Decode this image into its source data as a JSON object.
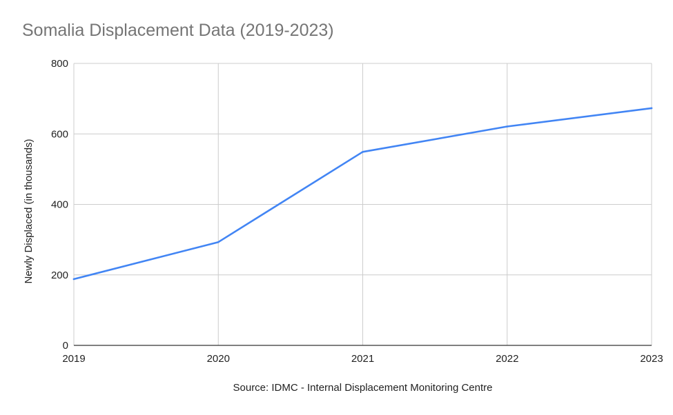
{
  "chart_data": {
    "type": "line",
    "title": "Somalia Displacement Data (2019-2023)",
    "xlabel": "Source: IDMC - Internal Displacement Monitoring Centre",
    "ylabel": "Newly Displaced (in thousands)",
    "x": [
      "2019",
      "2020",
      "2021",
      "2022",
      "2023"
    ],
    "series": [
      {
        "values": [
          188,
          293,
          549,
          621,
          673
        ]
      }
    ],
    "ylim": [
      0,
      800
    ],
    "yticks": [
      "0",
      "200",
      "400",
      "600",
      "800"
    ],
    "grid": true,
    "legend": "none",
    "colors": {
      "line": "#4285f4",
      "grid": "#cccccc",
      "title": "#757575",
      "text": "#222222"
    }
  }
}
